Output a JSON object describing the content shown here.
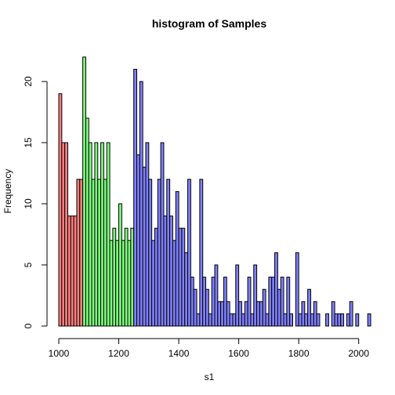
{
  "chart_data": {
    "type": "histogram",
    "title": "histogram of Samples",
    "x_label": "s1",
    "y_label": "Frequency",
    "xlim": [
      1000,
      2040
    ],
    "ylim": [
      0,
      20
    ],
    "xticks": [
      1000,
      1200,
      1400,
      1600,
      1800,
      2000
    ],
    "yticks": [
      0,
      5,
      10,
      15,
      20
    ],
    "series": [
      {
        "color": "#ff8080",
        "bins": [
          1000,
          1010,
          1020,
          1030,
          1040,
          1050,
          1060,
          1070,
          1080
        ],
        "counts": [
          19,
          15,
          15,
          9,
          9,
          9,
          12,
          12
        ]
      },
      {
        "color": "#80ff80",
        "bins": [
          1080,
          1090,
          1100,
          1110,
          1120,
          1130,
          1140,
          1150,
          1160,
          1170,
          1180,
          1190,
          1200,
          1210,
          1220,
          1230,
          1240,
          1250
        ],
        "counts": [
          22,
          17,
          15,
          12,
          15,
          12,
          15,
          12,
          15,
          7,
          8,
          7,
          10,
          7,
          8,
          7,
          8
        ]
      },
      {
        "color": "#8080ff",
        "bins": [
          1250,
          1260,
          1270,
          1280,
          1290,
          1300,
          1310,
          1320,
          1330,
          1340,
          1350,
          1360,
          1370,
          1380,
          1390,
          1400,
          1410,
          1420,
          1430,
          1440,
          1450,
          1460,
          1470,
          1480,
          1490,
          1500,
          1510,
          1520,
          1530,
          1540,
          1550,
          1560,
          1570,
          1580,
          1590,
          1600,
          1610,
          1620,
          1630,
          1640,
          1650,
          1660,
          1670,
          1680,
          1690,
          1700,
          1710,
          1720,
          1730,
          1740,
          1750,
          1760,
          1770,
          1780,
          1790,
          1800,
          1810,
          1820,
          1830,
          1840,
          1850,
          1860,
          1870,
          1880,
          1890,
          1900,
          1910,
          1920,
          1930,
          1940,
          1950,
          1960,
          1970,
          1980,
          1990,
          2000,
          2010,
          2020,
          2030,
          2040
        ],
        "counts": [
          21,
          14,
          20,
          13,
          15,
          12,
          7,
          8,
          12,
          15,
          9,
          12,
          9,
          7,
          11,
          8,
          8,
          6,
          12,
          4,
          3,
          1,
          12,
          4,
          3,
          1,
          4,
          5,
          2,
          2,
          4,
          2,
          1,
          1,
          5,
          2,
          1,
          2,
          4,
          1,
          5,
          2,
          2,
          3,
          1,
          4,
          4,
          6,
          3,
          4,
          1,
          4,
          1,
          0,
          6,
          1,
          2,
          1,
          3,
          1,
          2,
          1,
          0,
          0,
          1,
          0,
          2,
          1,
          1,
          1,
          0,
          1,
          2,
          0,
          1,
          0,
          0,
          0,
          1
        ]
      }
    ]
  }
}
